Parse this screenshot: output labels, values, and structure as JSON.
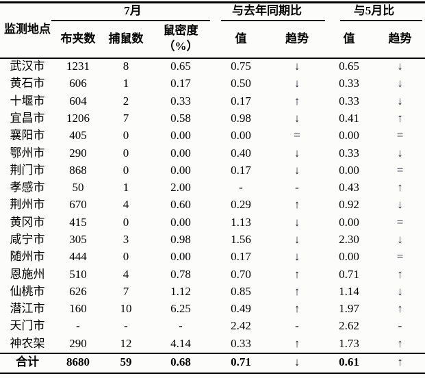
{
  "colors": {
    "text": "#000000",
    "trend_glyph": "#1c1c30",
    "rule": "#000000",
    "background": "#fcfcfb"
  },
  "icons": {
    "down_arrow": "↓",
    "up_arrow": "↑",
    "equal_sign": "=",
    "dash": "-"
  },
  "table": {
    "header": {
      "location": "监测地点",
      "groups": [
        {
          "label": "7月"
        },
        {
          "label": "与去年同期比"
        },
        {
          "label": "与5月比"
        }
      ],
      "sub": {
        "traps": "布夹数",
        "caught": "捕鼠数",
        "density_line1": "鼠密度",
        "density_line2": "（%）",
        "yoy_value": "值",
        "yoy_trend": "趋势",
        "may_value": "值",
        "may_trend": "趋势"
      }
    },
    "rows": [
      {
        "location": "武汉市",
        "traps": "1231",
        "caught": "8",
        "density": "0.65",
        "yoy_value": "0.75",
        "yoy_trend": "↓",
        "may_value": "0.65",
        "may_trend": "↓"
      },
      {
        "location": "黄石市",
        "traps": "606",
        "caught": "1",
        "density": "0.17",
        "yoy_value": "0.50",
        "yoy_trend": "↓",
        "may_value": "0.33",
        "may_trend": "↓"
      },
      {
        "location": "十堰市",
        "traps": "604",
        "caught": "2",
        "density": "0.33",
        "yoy_value": "0.17",
        "yoy_trend": "↑",
        "may_value": "0.33",
        "may_trend": "↓"
      },
      {
        "location": "宜昌市",
        "traps": "1206",
        "caught": "7",
        "density": "0.58",
        "yoy_value": "0.98",
        "yoy_trend": "↓",
        "may_value": "0.41",
        "may_trend": "↑"
      },
      {
        "location": "襄阳市",
        "traps": "405",
        "caught": "0",
        "density": "0.00",
        "yoy_value": "0.00",
        "yoy_trend": "=",
        "may_value": "0.00",
        "may_trend": "="
      },
      {
        "location": "鄂州市",
        "traps": "290",
        "caught": "0",
        "density": "0.00",
        "yoy_value": "0.40",
        "yoy_trend": "↓",
        "may_value": "0.33",
        "may_trend": "↓"
      },
      {
        "location": "荆门市",
        "traps": "868",
        "caught": "0",
        "density": "0.00",
        "yoy_value": "0.17",
        "yoy_trend": "↓",
        "may_value": "0.00",
        "may_trend": "="
      },
      {
        "location": "孝感市",
        "traps": "50",
        "caught": "1",
        "density": "2.00",
        "yoy_value": "-",
        "yoy_trend": "-",
        "may_value": "0.43",
        "may_trend": "↑"
      },
      {
        "location": "荆州市",
        "traps": "670",
        "caught": "4",
        "density": "0.60",
        "yoy_value": "0.29",
        "yoy_trend": "↑",
        "may_value": "0.92",
        "may_trend": "↓"
      },
      {
        "location": "黄冈市",
        "traps": "415",
        "caught": "0",
        "density": "0.00",
        "yoy_value": "1.13",
        "yoy_trend": "↓",
        "may_value": "0.00",
        "may_trend": "="
      },
      {
        "location": "咸宁市",
        "traps": "305",
        "caught": "3",
        "density": "0.98",
        "yoy_value": "1.56",
        "yoy_trend": "↓",
        "may_value": "2.30",
        "may_trend": "↓"
      },
      {
        "location": "随州市",
        "traps": "444",
        "caught": "0",
        "density": "0.00",
        "yoy_value": "0.17",
        "yoy_trend": "↓",
        "may_value": "0.00",
        "may_trend": "="
      },
      {
        "location": "恩施州",
        "traps": "510",
        "caught": "4",
        "density": "0.78",
        "yoy_value": "0.70",
        "yoy_trend": "↑",
        "may_value": "0.71",
        "may_trend": "↑"
      },
      {
        "location": "仙桃市",
        "traps": "626",
        "caught": "7",
        "density": "1.12",
        "yoy_value": "0.85",
        "yoy_trend": "↑",
        "may_value": "1.14",
        "may_trend": "↓"
      },
      {
        "location": "潜江市",
        "traps": "160",
        "caught": "10",
        "density": "6.25",
        "yoy_value": "0.49",
        "yoy_trend": "↑",
        "may_value": "1.97",
        "may_trend": "↑"
      },
      {
        "location": "天门市",
        "traps": "-",
        "caught": "-",
        "density": "-",
        "yoy_value": "2.42",
        "yoy_trend": "-",
        "may_value": "2.62",
        "may_trend": "-"
      },
      {
        "location": "神农架",
        "traps": "290",
        "caught": "12",
        "density": "4.14",
        "yoy_value": "0.33",
        "yoy_trend": "↑",
        "may_value": "1.73",
        "may_trend": "↑"
      }
    ],
    "total": {
      "location": "合计",
      "traps": "8680",
      "caught": "59",
      "density": "0.68",
      "yoy_value": "0.71",
      "yoy_trend": "↓",
      "may_value": "0.61",
      "may_trend": "↑"
    }
  }
}
